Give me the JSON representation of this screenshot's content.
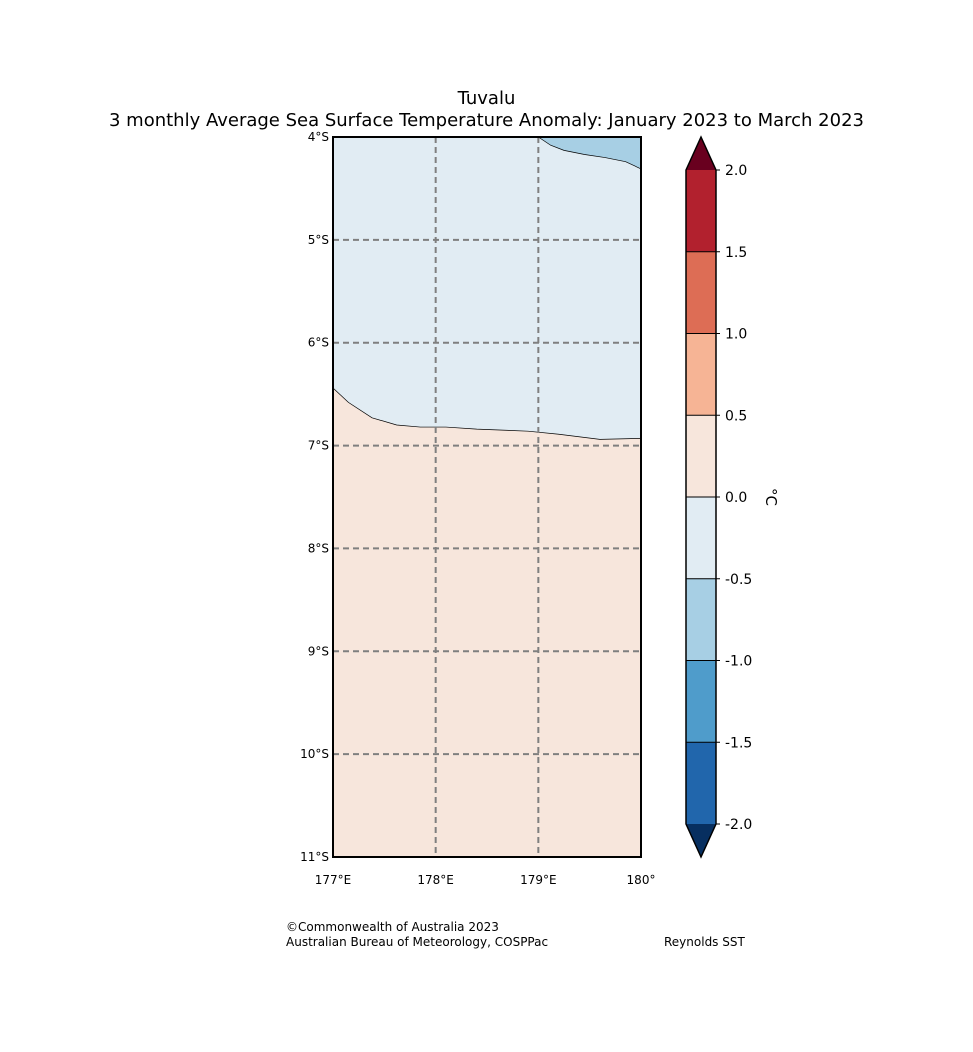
{
  "map": {
    "title": "Tuvalu",
    "subtitle": "3 monthly Average Sea Surface Temperature Anomaly: January 2023 to March 2023",
    "lon_range": [
      177,
      180
    ],
    "lat_range": [
      -11,
      -4
    ],
    "lat_ticks": [
      {
        "value": -4,
        "label": "4°S"
      },
      {
        "value": -5,
        "label": "5°S"
      },
      {
        "value": -6,
        "label": "6°S"
      },
      {
        "value": -7,
        "label": "7°S"
      },
      {
        "value": -8,
        "label": "8°S"
      },
      {
        "value": -9,
        "label": "9°S"
      },
      {
        "value": -10,
        "label": "10°S"
      },
      {
        "value": -11,
        "label": "11°S"
      }
    ],
    "lon_ticks": [
      {
        "value": 177,
        "label": "177°E"
      },
      {
        "value": 178,
        "label": "178°E"
      },
      {
        "value": 179,
        "label": "179°E"
      },
      {
        "value": 180,
        "label": "180°"
      }
    ],
    "contours": [
      {
        "name": "anomaly-band-minus-0-5-to-0",
        "range": "-0.5 to 0.0",
        "color": "#e1ecf3",
        "boundary": [
          [
            177.0,
            -6.44
          ],
          [
            177.15,
            -6.58
          ],
          [
            177.38,
            -6.73
          ],
          [
            177.62,
            -6.8
          ],
          [
            177.85,
            -6.82
          ],
          [
            178.1,
            -6.82
          ],
          [
            178.4,
            -6.84
          ],
          [
            178.65,
            -6.85
          ],
          [
            178.9,
            -6.86
          ],
          [
            179.2,
            -6.89
          ],
          [
            179.6,
            -6.94
          ],
          [
            180.0,
            -6.93
          ]
        ]
      },
      {
        "name": "anomaly-band-minus-1-to-minus-0-5",
        "range": "-1.0 to -0.5",
        "color": "#a7cfe4",
        "boundary": [
          [
            179.0,
            -4.0
          ],
          [
            179.12,
            -4.08
          ],
          [
            179.25,
            -4.13
          ],
          [
            179.45,
            -4.17
          ],
          [
            179.65,
            -4.2
          ],
          [
            179.85,
            -4.24
          ],
          [
            180.0,
            -4.31
          ]
        ]
      }
    ]
  },
  "colorbar": {
    "unit_label": "°C",
    "levels": [
      -2.0,
      -1.5,
      -1.0,
      -0.5,
      0.0,
      0.5,
      1.0,
      1.5,
      2.0
    ],
    "tick_labels": [
      "-2.0",
      "-1.5",
      "-1.0",
      "-0.5",
      "0.0",
      "0.5",
      "1.0",
      "1.5",
      "2.0"
    ],
    "colors": [
      "#2166ac",
      "#4f9ccb",
      "#a7cfe4",
      "#e1ecf3",
      "#f7e6dc",
      "#f6b495",
      "#dd6d55",
      "#b2212e"
    ],
    "under_color": "#072f60",
    "over_color": "#69001f",
    "base_fill_color": "#f7e6dc"
  },
  "credits": {
    "line1": "©Commonwealth of Australia 2023",
    "line2": "Australian Bureau of Meteorology, COSPPac",
    "source": "Reynolds SST"
  }
}
